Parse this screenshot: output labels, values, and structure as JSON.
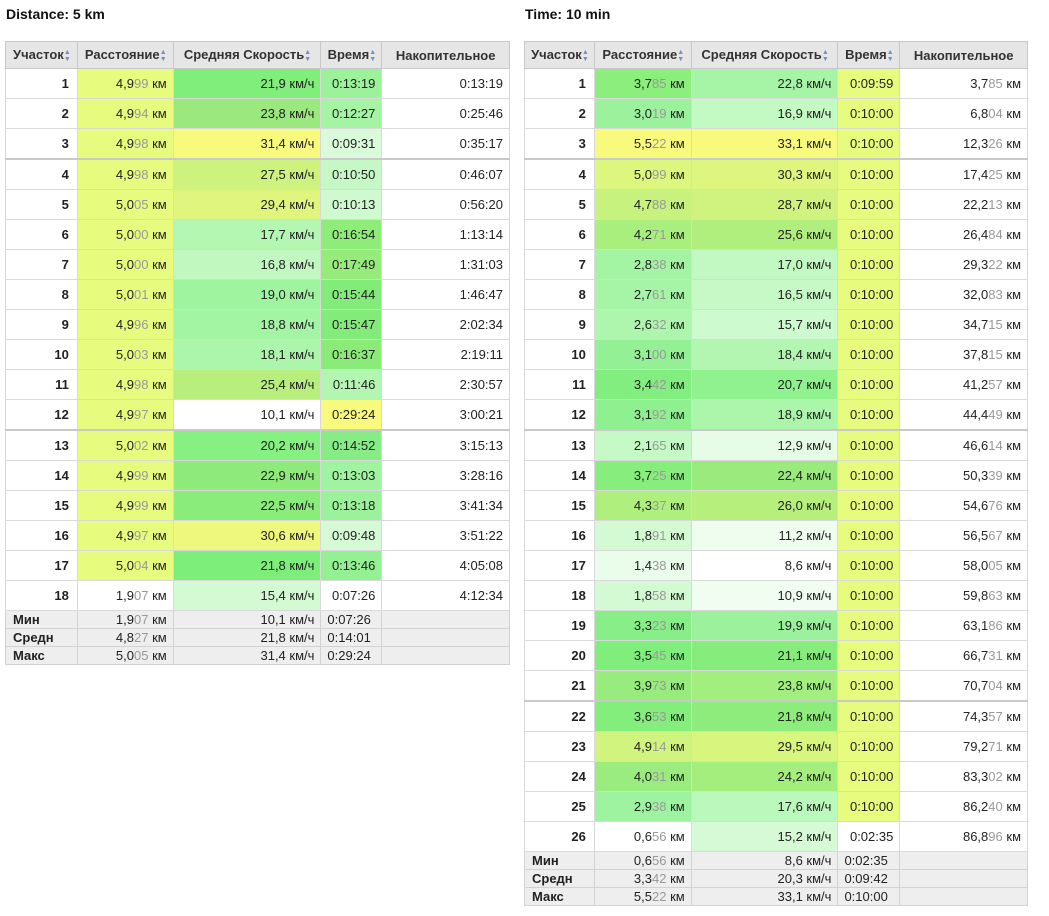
{
  "left": {
    "title": "Distance: 5 km",
    "headers": [
      "Участок",
      "Расстояние",
      "Средняя Скорость",
      "Время",
      "Накопительное"
    ],
    "rows": [
      {
        "seg": "1",
        "dist": "4,999",
        "speed": "21,9 км/ч",
        "time": "0:13:19",
        "cum": "0:13:19",
        "c": [
          "#e7fb7e",
          "#80ee7a",
          "#9cf29b",
          ""
        ]
      },
      {
        "seg": "2",
        "dist": "4,994",
        "speed": "23,8 км/ч",
        "time": "0:12:27",
        "cum": "0:25:46",
        "c": [
          "#e7fb7e",
          "#9be97e",
          "#a4f4a3",
          ""
        ]
      },
      {
        "seg": "3",
        "dist": "4,998",
        "speed": "31,4 км/ч",
        "time": "0:09:31",
        "cum": "0:35:17",
        "c": [
          "#e7fb7e",
          "#f8fa7e",
          "#d9fbd9",
          ""
        ]
      },
      {
        "seg": "4",
        "dist": "4,998",
        "speed": "27,5 км/ч",
        "time": "0:10:50",
        "cum": "0:46:07",
        "c": [
          "#e7fb7e",
          "#cdf27e",
          "#c6f8c5",
          ""
        ]
      },
      {
        "seg": "5",
        "dist": "5,005",
        "speed": "29,4 км/ч",
        "time": "0:10:13",
        "cum": "0:56:20",
        "c": [
          "#e7fb7e",
          "#e0f57d",
          "#cff9cf",
          ""
        ]
      },
      {
        "seg": "6",
        "dist": "5,000",
        "speed": "17,7 км/ч",
        "time": "0:16:54",
        "cum": "1:13:14",
        "c": [
          "#e7fb7e",
          "#b3f7b3",
          "#8eec79",
          ""
        ]
      },
      {
        "seg": "7",
        "dist": "5,000",
        "speed": "16,8 км/ч",
        "time": "0:17:49",
        "cum": "1:31:03",
        "c": [
          "#e7fb7e",
          "#c0f8c0",
          "#96ec7a",
          ""
        ]
      },
      {
        "seg": "8",
        "dist": "5,001",
        "speed": "19,0 км/ч",
        "time": "0:15:44",
        "cum": "1:46:47",
        "c": [
          "#e7fb7e",
          "#9ff4a0",
          "#83eb79",
          ""
        ]
      },
      {
        "seg": "9",
        "dist": "4,996",
        "speed": "18,8 км/ч",
        "time": "0:15:47",
        "cum": "2:02:34",
        "c": [
          "#e7fb7e",
          "#a3f4a3",
          "#83eb79",
          ""
        ]
      },
      {
        "seg": "10",
        "dist": "5,003",
        "speed": "18,1 км/ч",
        "time": "0:16:37",
        "cum": "2:19:11",
        "c": [
          "#e7fb7e",
          "#acf6ac",
          "#8aeb79",
          ""
        ]
      },
      {
        "seg": "11",
        "dist": "4,998",
        "speed": "25,4 км/ч",
        "time": "0:11:46",
        "cum": "2:30:57",
        "c": [
          "#e7fb7e",
          "#b7ee7e",
          "#b3f6b2",
          ""
        ]
      },
      {
        "seg": "12",
        "dist": "4,997",
        "speed": "10,1 км/ч",
        "time": "0:29:24",
        "cum": "3:00:21",
        "c": [
          "#e7fb7e",
          "#ffffff",
          "#f8fa7e",
          ""
        ]
      },
      {
        "seg": "13",
        "dist": "5,002",
        "speed": "20,2 км/ч",
        "time": "0:14:52",
        "cum": "3:15:13",
        "c": [
          "#e7fb7e",
          "#86f082",
          "#87ec86",
          ""
        ]
      },
      {
        "seg": "14",
        "dist": "4,999",
        "speed": "22,9 км/ч",
        "time": "0:13:03",
        "cum": "3:28:16",
        "c": [
          "#e7fb7e",
          "#8eeb7b",
          "#a0f3a0",
          ""
        ]
      },
      {
        "seg": "15",
        "dist": "4,999",
        "speed": "22,5 км/ч",
        "time": "0:13:18",
        "cum": "3:41:34",
        "c": [
          "#e7fb7e",
          "#8aec7b",
          "#9cf29b",
          ""
        ]
      },
      {
        "seg": "16",
        "dist": "4,997",
        "speed": "30,6 км/ч",
        "time": "0:09:48",
        "cum": "3:51:22",
        "c": [
          "#e7fb7e",
          "#eef87d",
          "#d6fad6",
          ""
        ]
      },
      {
        "seg": "17",
        "dist": "5,004",
        "speed": "21,8 км/ч",
        "time": "0:13:46",
        "cum": "4:05:08",
        "c": [
          "#e7fb7e",
          "#7eee7b",
          "#93f093",
          ""
        ]
      },
      {
        "seg": "18",
        "dist": "1,907",
        "speed": "15,4 км/ч",
        "time": "0:07:26",
        "cum": "4:12:34",
        "c": [
          "#ffffff",
          "#d3fad3",
          "#ffffff",
          ""
        ]
      }
    ],
    "groups": [
      3,
      12
    ],
    "summary": [
      {
        "label": "Мин",
        "dist": "1,907",
        "speed": "10,1 км/ч",
        "time": "0:07:26"
      },
      {
        "label": "Средн",
        "dist": "4,827",
        "speed": "21,8 км/ч",
        "time": "0:14:01"
      },
      {
        "label": "Макс",
        "dist": "5,005",
        "speed": "31,4 км/ч",
        "time": "0:29:24"
      }
    ]
  },
  "right": {
    "title": "Time: 10 min",
    "headers": [
      "Участок",
      "Расстояние",
      "Средняя Скорость",
      "Время",
      "Накопительное"
    ],
    "rows": [
      {
        "seg": "1",
        "dist": "3,785",
        "speed": "22,8 км/ч",
        "time": "0:09:59",
        "cum": "3,785",
        "c": [
          "#8cee7c",
          "#a6f5a6",
          "#e7fb7e",
          ""
        ]
      },
      {
        "seg": "2",
        "dist": "3,019",
        "speed": "16,9 км/ч",
        "time": "0:10:00",
        "cum": "6,804",
        "c": [
          "#9cf29c",
          "#c3f9c3",
          "#e7fb7e",
          ""
        ]
      },
      {
        "seg": "3",
        "dist": "5,522",
        "speed": "33,1 км/ч",
        "time": "0:10:00",
        "cum": "12,326",
        "c": [
          "#f8fa7e",
          "#f8fa7e",
          "#e7fb7e",
          ""
        ]
      },
      {
        "seg": "4",
        "dist": "5,099",
        "speed": "30,3 км/ч",
        "time": "0:10:00",
        "cum": "17,425",
        "c": [
          "#dcf67e",
          "#dff67e",
          "#e7fb7e",
          ""
        ]
      },
      {
        "seg": "5",
        "dist": "4,788",
        "speed": "28,7 км/ч",
        "time": "0:10:00",
        "cum": "22,213",
        "c": [
          "#c7f27e",
          "#cff37e",
          "#e7fb7e",
          ""
        ]
      },
      {
        "seg": "6",
        "dist": "4,271",
        "speed": "25,6 км/ч",
        "time": "0:10:00",
        "cum": "26,484",
        "c": [
          "#a9ef7d",
          "#b0ef7d",
          "#e7fb7e",
          ""
        ]
      },
      {
        "seg": "7",
        "dist": "2,838",
        "speed": "17,0 км/ч",
        "time": "0:10:00",
        "cum": "29,322",
        "c": [
          "#a3f4a3",
          "#c2f9c2",
          "#e7fb7e",
          ""
        ]
      },
      {
        "seg": "8",
        "dist": "2,761",
        "speed": "16,5 км/ч",
        "time": "0:10:00",
        "cum": "32,083",
        "c": [
          "#a6f5a6",
          "#c6f9c6",
          "#e7fb7e",
          ""
        ]
      },
      {
        "seg": "9",
        "dist": "2,632",
        "speed": "15,7 км/ч",
        "time": "0:10:00",
        "cum": "34,715",
        "c": [
          "#aef6ae",
          "#cefacf",
          "#e7fb7e",
          ""
        ]
      },
      {
        "seg": "10",
        "dist": "3,100",
        "speed": "18,4 км/ч",
        "time": "0:10:00",
        "cum": "37,815",
        "c": [
          "#94f094",
          "#b3f6b2",
          "#e7fb7e",
          ""
        ]
      },
      {
        "seg": "11",
        "dist": "3,442",
        "speed": "20,7 км/ч",
        "time": "0:10:00",
        "cum": "41,257",
        "c": [
          "#82ee80",
          "#8ff28f",
          "#e7fb7e",
          ""
        ]
      },
      {
        "seg": "12",
        "dist": "3,192",
        "speed": "18,9 км/ч",
        "time": "0:10:00",
        "cum": "44,449",
        "c": [
          "#8ff08f",
          "#acf6ac",
          "#e7fb7e",
          ""
        ]
      },
      {
        "seg": "13",
        "dist": "2,165",
        "speed": "12,9 км/ч",
        "time": "0:10:00",
        "cum": "46,614",
        "c": [
          "#c5f9c5",
          "#e6fce6",
          "#e7fb7e",
          ""
        ]
      },
      {
        "seg": "14",
        "dist": "3,725",
        "speed": "22,4 км/ч",
        "time": "0:10:00",
        "cum": "50,339",
        "c": [
          "#87ee7d",
          "#9bea7e",
          "#e7fb7e",
          ""
        ]
      },
      {
        "seg": "15",
        "dist": "4,337",
        "speed": "26,0 км/ч",
        "time": "0:10:00",
        "cum": "54,676",
        "c": [
          "#aeef7d",
          "#b7ef7d",
          "#e7fb7e",
          ""
        ]
      },
      {
        "seg": "16",
        "dist": "1,891",
        "speed": "11,2 км/ч",
        "time": "0:10:00",
        "cum": "56,567",
        "c": [
          "#d3fad3",
          "#effdef",
          "#e7fb7e",
          ""
        ]
      },
      {
        "seg": "17",
        "dist": "1,438",
        "speed": "8,6 км/ч",
        "time": "0:10:00",
        "cum": "58,005",
        "c": [
          "#eafdea",
          "#ffffff",
          "#e7fb7e",
          ""
        ]
      },
      {
        "seg": "18",
        "dist": "1,858",
        "speed": "10,9 км/ч",
        "time": "0:10:00",
        "cum": "59,863",
        "c": [
          "#d4fad4",
          "#f0fdf0",
          "#e7fb7e",
          ""
        ]
      },
      {
        "seg": "19",
        "dist": "3,323",
        "speed": "19,9 км/ч",
        "time": "0:10:00",
        "cum": "63,186",
        "c": [
          "#88ee88",
          "#9cf29c",
          "#e7fb7e",
          ""
        ]
      },
      {
        "seg": "20",
        "dist": "3,545",
        "speed": "21,1 км/ч",
        "time": "0:10:00",
        "cum": "66,731",
        "c": [
          "#7fee7d",
          "#86ec7b",
          "#e7fb7e",
          ""
        ]
      },
      {
        "seg": "21",
        "dist": "3,973",
        "speed": "23,8 км/ч",
        "time": "0:10:00",
        "cum": "70,704",
        "c": [
          "#97ec7d",
          "#a2ee7e",
          "#e7fb7e",
          ""
        ]
      },
      {
        "seg": "22",
        "dist": "3,653",
        "speed": "21,8 км/ч",
        "time": "0:10:00",
        "cum": "74,357",
        "c": [
          "#83ee7c",
          "#8eec7c",
          "#e7fb7e",
          ""
        ]
      },
      {
        "seg": "23",
        "dist": "4,914",
        "speed": "29,5 км/ч",
        "time": "0:10:00",
        "cum": "79,271",
        "c": [
          "#d0f47e",
          "#d8f57e",
          "#e7fb7e",
          ""
        ]
      },
      {
        "seg": "24",
        "dist": "4,031",
        "speed": "24,2 км/ч",
        "time": "0:10:00",
        "cum": "83,302",
        "c": [
          "#99ec7d",
          "#a4ee7e",
          "#e7fb7e",
          ""
        ]
      },
      {
        "seg": "25",
        "dist": "2,938",
        "speed": "17,6 км/ч",
        "time": "0:10:00",
        "cum": "86,240",
        "c": [
          "#9ef3a0",
          "#bbf8bb",
          "#e7fb7e",
          ""
        ]
      },
      {
        "seg": "26",
        "dist": "0,656",
        "speed": "15,2 км/ч",
        "time": "0:02:35",
        "cum": "86,896",
        "c": [
          "#ffffff",
          "#d5fad5",
          "#ffffff",
          ""
        ]
      }
    ],
    "groups": [
      3,
      12,
      21
    ],
    "summary": [
      {
        "label": "Мин",
        "dist": "0,656",
        "speed": "8,6 км/ч",
        "time": "0:02:35"
      },
      {
        "label": "Средн",
        "dist": "3,342",
        "speed": "20,3 км/ч",
        "time": "0:09:42"
      },
      {
        "label": "Макс",
        "dist": "5,522",
        "speed": "33,1 км/ч",
        "time": "0:10:00"
      }
    ]
  },
  "unit_km": "км",
  "sort_icon": "sort-arrows-icon"
}
